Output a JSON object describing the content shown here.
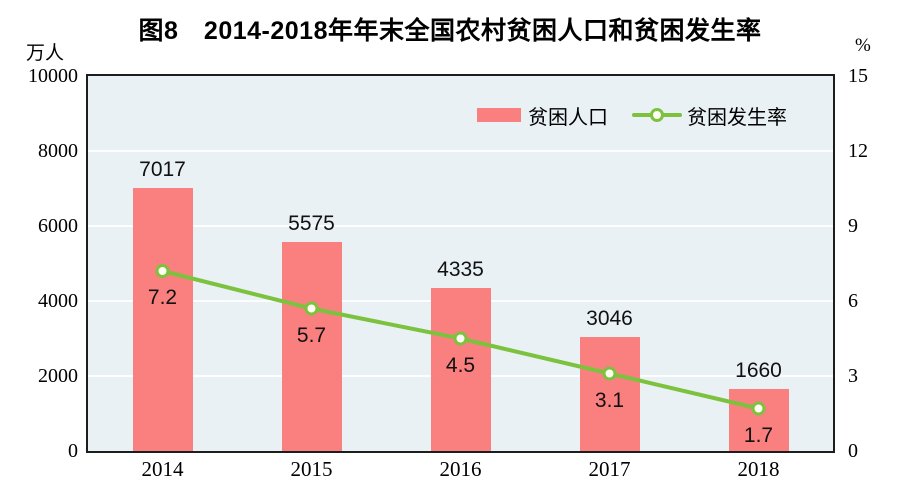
{
  "title": "图8　2014-2018年年末全国农村贫困人口和贫困发生率",
  "left_axis": {
    "unit": "万人",
    "ticks": [
      0,
      2000,
      4000,
      6000,
      8000,
      10000
    ],
    "max": 10000
  },
  "right_axis": {
    "unit": "%",
    "ticks": [
      0,
      3,
      6,
      9,
      12,
      15
    ],
    "max": 15
  },
  "legend": {
    "bar_label": "贫困人口",
    "line_label": "贫困发生率"
  },
  "colors": {
    "bar": "#f9807f",
    "line": "#7cc23e",
    "marker_fill": "#fffef4",
    "plot_bg": "#e9f1f4",
    "grid": "#fbfdfe",
    "border": "#1d1d1d"
  },
  "chart_data": {
    "type": "bar+line",
    "title": "图8　2014-2018年年末全国农村贫困人口和贫困发生率",
    "categories": [
      "2014",
      "2015",
      "2016",
      "2017",
      "2018"
    ],
    "series": [
      {
        "name": "贫困人口",
        "type": "bar",
        "axis": "left",
        "unit": "万人",
        "values": [
          7017,
          5575,
          4335,
          3046,
          1660
        ]
      },
      {
        "name": "贫困发生率",
        "type": "line",
        "axis": "right",
        "unit": "%",
        "values": [
          7.2,
          5.7,
          4.5,
          3.1,
          1.7
        ]
      }
    ],
    "xlabel": "",
    "left_ylabel": "万人",
    "right_ylabel": "%",
    "left_ylim": [
      0,
      10000
    ],
    "right_ylim": [
      0,
      15
    ],
    "grid": true,
    "gridlines_at_left_values": [
      2000,
      4000,
      6000,
      8000
    ],
    "legend_position": "inside-top-right",
    "value_labels_shown": true
  }
}
